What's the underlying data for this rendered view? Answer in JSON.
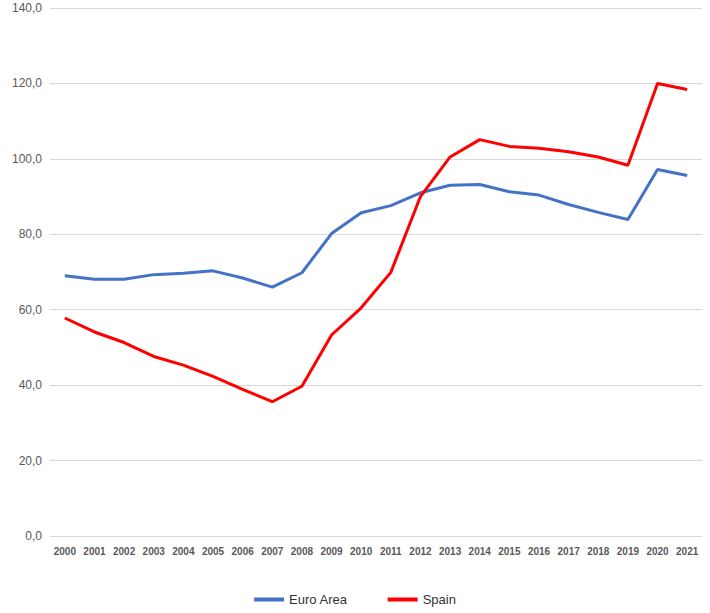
{
  "chart_data": {
    "type": "line",
    "categories": [
      "2000",
      "2001",
      "2002",
      "2003",
      "2004",
      "2005",
      "2006",
      "2007",
      "2008",
      "2009",
      "2010",
      "2011",
      "2012",
      "2013",
      "2014",
      "2015",
      "2016",
      "2017",
      "2018",
      "2019",
      "2020",
      "2021"
    ],
    "series": [
      {
        "name": "Euro Area",
        "color": "#4472c4",
        "values": [
          69.0,
          68.1,
          68.1,
          69.3,
          69.7,
          70.3,
          68.4,
          66.0,
          69.8,
          80.2,
          85.7,
          87.6,
          91.0,
          93.0,
          93.2,
          91.3,
          90.4,
          87.9,
          85.8,
          83.9,
          97.2,
          95.6
        ]
      },
      {
        "name": "Spain",
        "color": "#ff0000",
        "values": [
          57.8,
          54.1,
          51.3,
          47.6,
          45.3,
          42.3,
          38.9,
          35.6,
          39.7,
          53.3,
          60.5,
          69.9,
          90.0,
          100.5,
          105.1,
          103.3,
          102.8,
          101.9,
          100.5,
          98.3,
          120.0,
          118.4
        ]
      }
    ],
    "ylim": [
      0,
      140
    ],
    "yticks": [
      {
        "value": 0,
        "label": "0,0"
      },
      {
        "value": 20,
        "label": "20,0"
      },
      {
        "value": 40,
        "label": "40,0"
      },
      {
        "value": 60,
        "label": "60,0"
      },
      {
        "value": 80,
        "label": "80,0"
      },
      {
        "value": 100,
        "label": "100,0"
      },
      {
        "value": 120,
        "label": "120,0"
      },
      {
        "value": 140,
        "label": "140,0"
      }
    ],
    "grid": true,
    "legend": "bottom"
  }
}
